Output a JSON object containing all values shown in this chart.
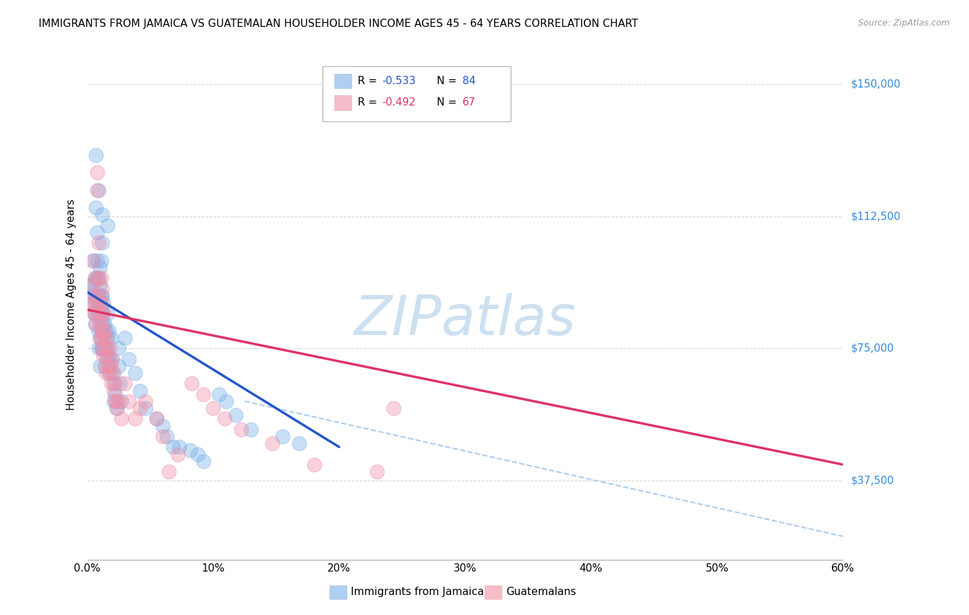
{
  "title": "IMMIGRANTS FROM JAMAICA VS GUATEMALAN HOUSEHOLDER INCOME AGES 45 - 64 YEARS CORRELATION CHART",
  "source": "Source: ZipAtlas.com",
  "ylabel": "Householder Income Ages 45 - 64 years",
  "ytick_labels": [
    "$37,500",
    "$75,000",
    "$112,500",
    "$150,000"
  ],
  "ytick_values": [
    37500,
    75000,
    112500,
    150000
  ],
  "ymin": 15000,
  "ymax": 160000,
  "xmin": 0.0,
  "xmax": 0.6,
  "legend_label_jamaica": "Immigrants from Jamaica",
  "legend_label_guatemalans": "Guatemalans",
  "jamaica_color": "#7ab0e8",
  "guatemalan_color": "#f090a8",
  "watermark": "ZIPatlas",
  "watermark_color": "#cce0f0",
  "blue_scatter": [
    [
      0.002,
      93000
    ],
    [
      0.003,
      90000
    ],
    [
      0.004,
      100000
    ],
    [
      0.005,
      93000
    ],
    [
      0.005,
      88000
    ],
    [
      0.005,
      85000
    ],
    [
      0.006,
      95000
    ],
    [
      0.006,
      90000
    ],
    [
      0.006,
      82000
    ],
    [
      0.007,
      130000
    ],
    [
      0.007,
      115000
    ],
    [
      0.008,
      108000
    ],
    [
      0.008,
      100000
    ],
    [
      0.008,
      95000
    ],
    [
      0.008,
      88000
    ],
    [
      0.008,
      85000
    ],
    [
      0.009,
      120000
    ],
    [
      0.009,
      95000
    ],
    [
      0.009,
      90000
    ],
    [
      0.009,
      85000
    ],
    [
      0.009,
      80000
    ],
    [
      0.009,
      75000
    ],
    [
      0.01,
      98000
    ],
    [
      0.01,
      93000
    ],
    [
      0.01,
      88000
    ],
    [
      0.01,
      83000
    ],
    [
      0.01,
      78000
    ],
    [
      0.01,
      70000
    ],
    [
      0.011,
      100000
    ],
    [
      0.011,
      90000
    ],
    [
      0.011,
      85000
    ],
    [
      0.011,
      80000
    ],
    [
      0.011,
      75000
    ],
    [
      0.012,
      113000
    ],
    [
      0.012,
      105000
    ],
    [
      0.012,
      90000
    ],
    [
      0.012,
      85000
    ],
    [
      0.012,
      80000
    ],
    [
      0.012,
      75000
    ],
    [
      0.013,
      88000
    ],
    [
      0.013,
      82000
    ],
    [
      0.013,
      75000
    ],
    [
      0.014,
      82000
    ],
    [
      0.014,
      76000
    ],
    [
      0.014,
      70000
    ],
    [
      0.015,
      80000
    ],
    [
      0.015,
      75000
    ],
    [
      0.016,
      110000
    ],
    [
      0.016,
      85000
    ],
    [
      0.016,
      78000
    ],
    [
      0.016,
      72000
    ],
    [
      0.017,
      80000
    ],
    [
      0.017,
      73000
    ],
    [
      0.018,
      68000
    ],
    [
      0.019,
      78000
    ],
    [
      0.019,
      72000
    ],
    [
      0.02,
      68000
    ],
    [
      0.021,
      65000
    ],
    [
      0.021,
      60000
    ],
    [
      0.022,
      62000
    ],
    [
      0.023,
      58000
    ],
    [
      0.025,
      75000
    ],
    [
      0.025,
      70000
    ],
    [
      0.026,
      65000
    ],
    [
      0.027,
      60000
    ],
    [
      0.03,
      78000
    ],
    [
      0.033,
      72000
    ],
    [
      0.038,
      68000
    ],
    [
      0.042,
      63000
    ],
    [
      0.046,
      58000
    ],
    [
      0.055,
      55000
    ],
    [
      0.06,
      53000
    ],
    [
      0.063,
      50000
    ],
    [
      0.068,
      47000
    ],
    [
      0.073,
      47000
    ],
    [
      0.082,
      46000
    ],
    [
      0.088,
      45000
    ],
    [
      0.092,
      43000
    ],
    [
      0.105,
      62000
    ],
    [
      0.11,
      60000
    ],
    [
      0.118,
      56000
    ],
    [
      0.13,
      52000
    ],
    [
      0.155,
      50000
    ],
    [
      0.168,
      48000
    ]
  ],
  "pink_scatter": [
    [
      0.003,
      93000
    ],
    [
      0.004,
      88000
    ],
    [
      0.005,
      85000
    ],
    [
      0.005,
      100000
    ],
    [
      0.006,
      95000
    ],
    [
      0.006,
      90000
    ],
    [
      0.006,
      85000
    ],
    [
      0.007,
      88000
    ],
    [
      0.007,
      82000
    ],
    [
      0.008,
      125000
    ],
    [
      0.008,
      120000
    ],
    [
      0.009,
      105000
    ],
    [
      0.009,
      95000
    ],
    [
      0.009,
      90000
    ],
    [
      0.01,
      88000
    ],
    [
      0.01,
      82000
    ],
    [
      0.01,
      78000
    ],
    [
      0.011,
      95000
    ],
    [
      0.011,
      88000
    ],
    [
      0.011,
      83000
    ],
    [
      0.011,
      78000
    ],
    [
      0.012,
      92000
    ],
    [
      0.012,
      85000
    ],
    [
      0.012,
      80000
    ],
    [
      0.012,
      75000
    ],
    [
      0.013,
      85000
    ],
    [
      0.013,
      78000
    ],
    [
      0.013,
      73000
    ],
    [
      0.014,
      80000
    ],
    [
      0.014,
      75000
    ],
    [
      0.014,
      70000
    ],
    [
      0.015,
      78000
    ],
    [
      0.015,
      73000
    ],
    [
      0.015,
      68000
    ],
    [
      0.016,
      75000
    ],
    [
      0.017,
      70000
    ],
    [
      0.017,
      68000
    ],
    [
      0.018,
      75000
    ],
    [
      0.019,
      70000
    ],
    [
      0.019,
      65000
    ],
    [
      0.02,
      72000
    ],
    [
      0.021,
      68000
    ],
    [
      0.021,
      63000
    ],
    [
      0.022,
      60000
    ],
    [
      0.022,
      65000
    ],
    [
      0.023,
      60000
    ],
    [
      0.024,
      58000
    ],
    [
      0.025,
      60000
    ],
    [
      0.027,
      55000
    ],
    [
      0.03,
      65000
    ],
    [
      0.033,
      60000
    ],
    [
      0.038,
      55000
    ],
    [
      0.042,
      58000
    ],
    [
      0.046,
      60000
    ],
    [
      0.055,
      55000
    ],
    [
      0.06,
      50000
    ],
    [
      0.065,
      40000
    ],
    [
      0.072,
      45000
    ],
    [
      0.083,
      65000
    ],
    [
      0.092,
      62000
    ],
    [
      0.1,
      58000
    ],
    [
      0.109,
      55000
    ],
    [
      0.122,
      52000
    ],
    [
      0.147,
      48000
    ],
    [
      0.18,
      42000
    ],
    [
      0.23,
      40000
    ],
    [
      0.243,
      58000
    ]
  ],
  "blue_line_x": [
    0.0,
    0.2
  ],
  "blue_line_y": [
    91000,
    47000
  ],
  "pink_line_x": [
    0.0,
    0.6
  ],
  "pink_line_y": [
    86000,
    42000
  ],
  "dashed_line_x": [
    0.125,
    0.62
  ],
  "dashed_line_y": [
    60000,
    20000
  ],
  "title_fontsize": 11,
  "axis_label_fontsize": 11,
  "tick_fontsize": 11,
  "r_blue": "-0.533",
  "n_blue": "84",
  "r_pink": "-0.492",
  "n_pink": "67"
}
